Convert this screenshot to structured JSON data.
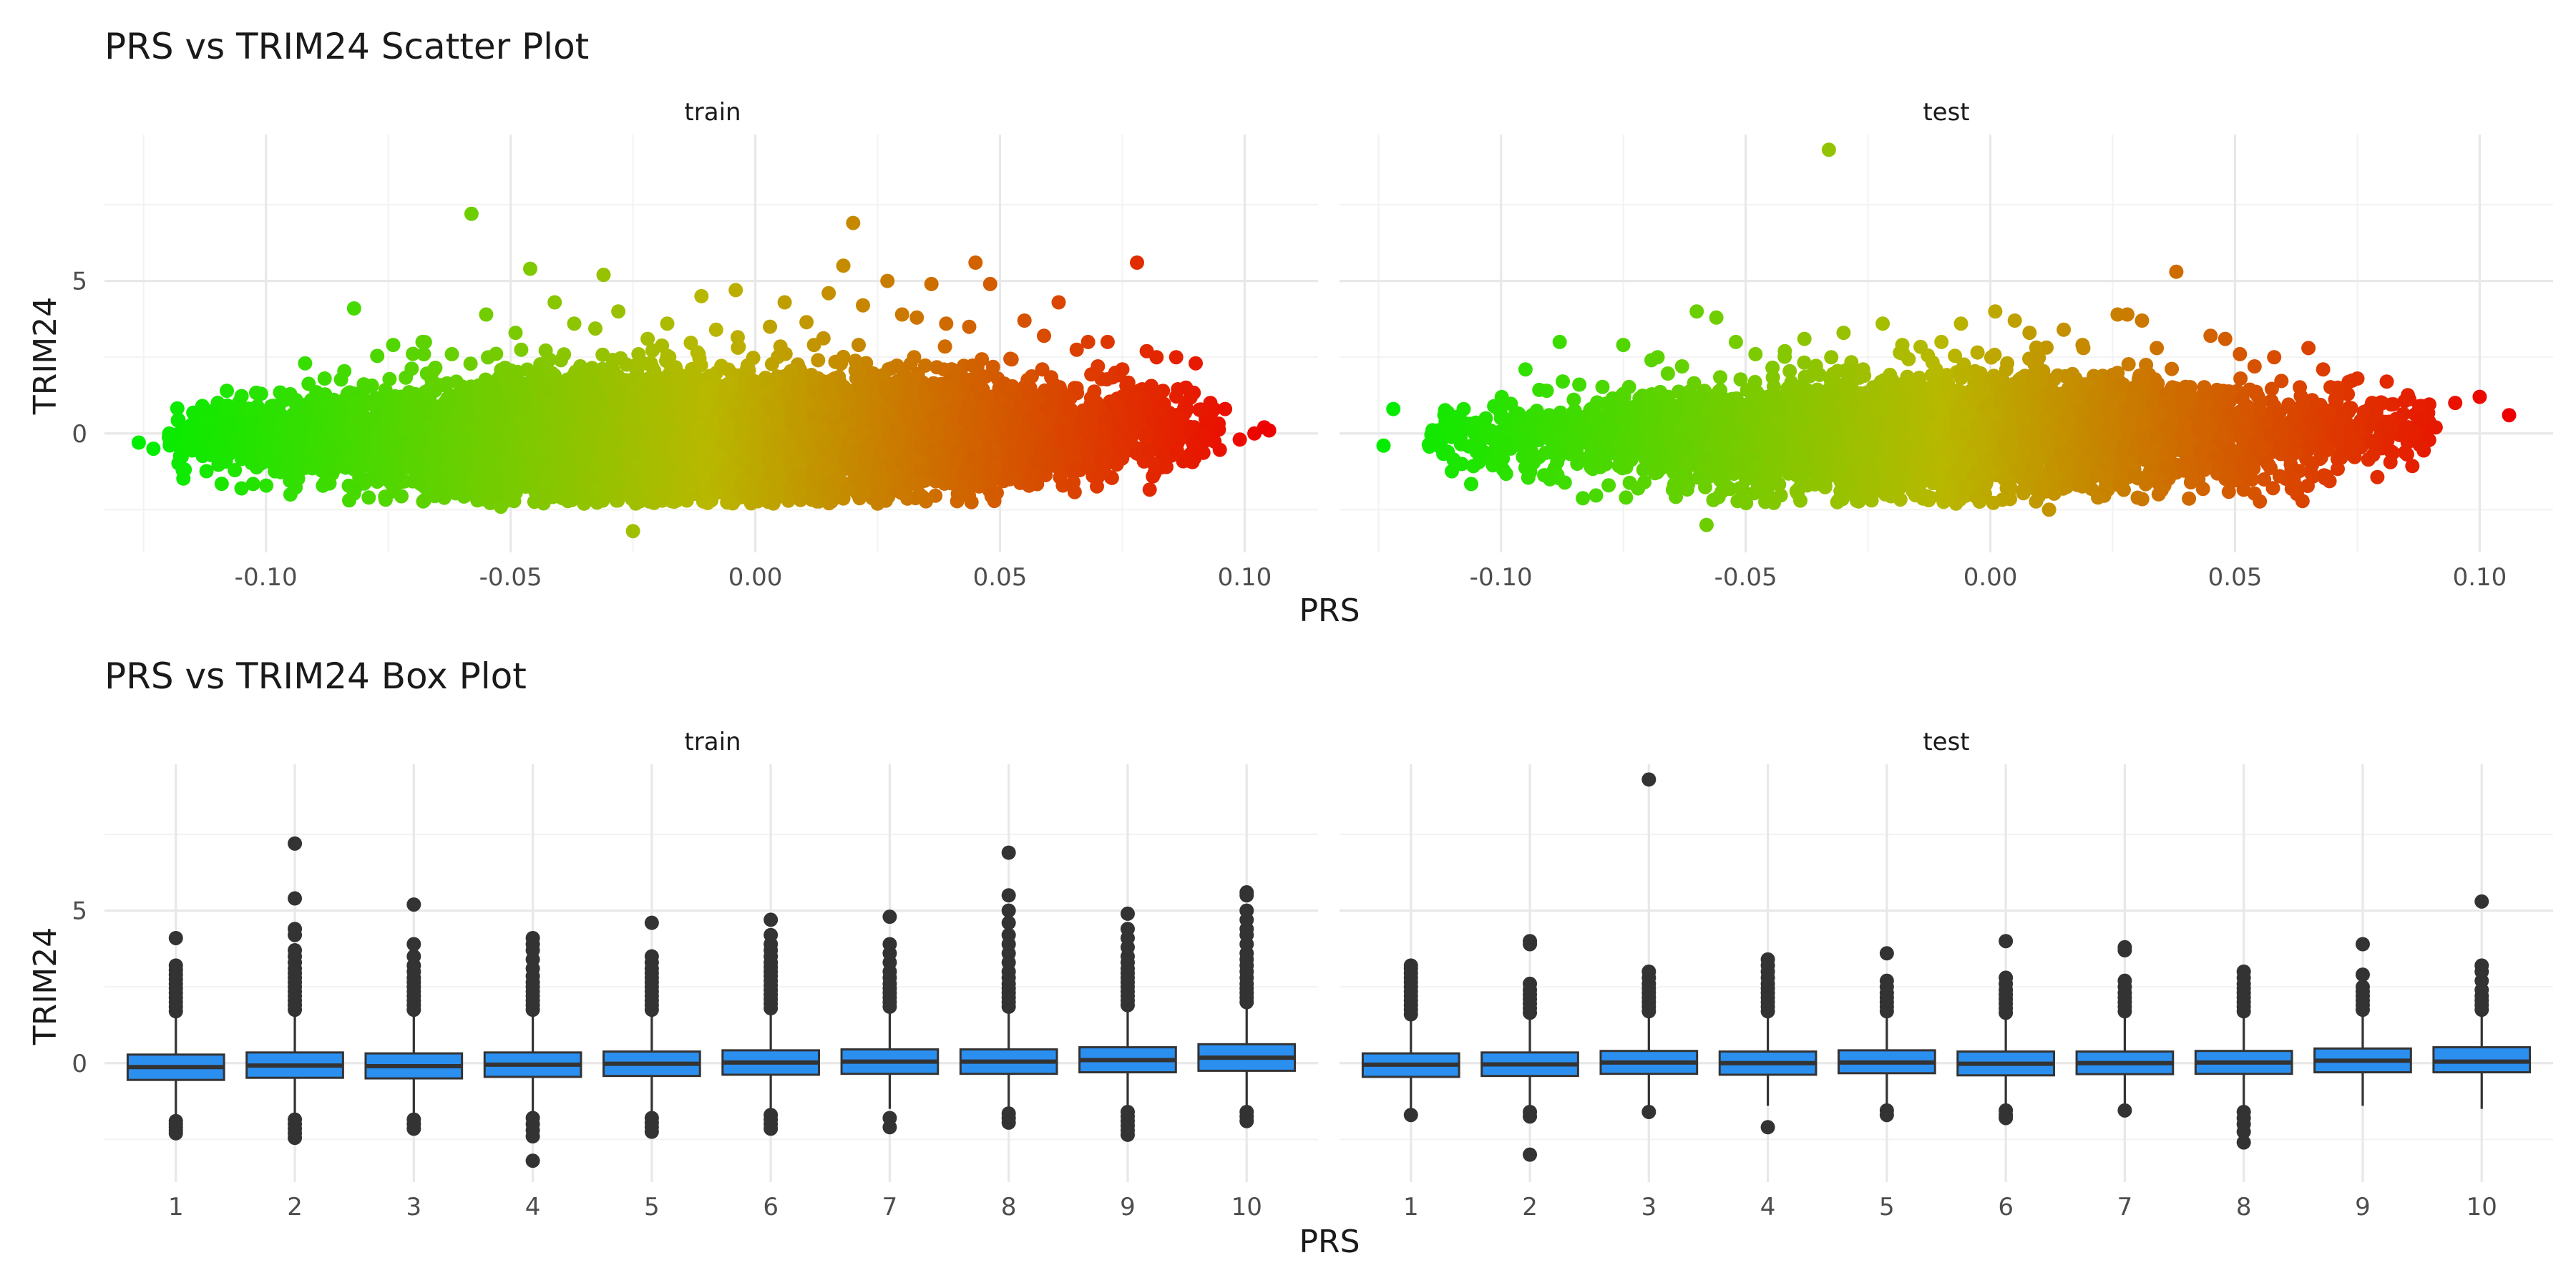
{
  "chart_data": [
    {
      "type": "scatter",
      "title": "PRS vs TRIM24 Scatter Plot",
      "xlabel": "PRS",
      "ylabel": "TRIM24",
      "facets": [
        "train",
        "test"
      ],
      "xlim": [
        -0.133,
        0.115
      ],
      "ylim": [
        -3.9,
        9.8
      ],
      "x_ticks": [
        -0.1,
        -0.05,
        0.0,
        0.05,
        0.1
      ],
      "x_tick_labels": [
        "-0.10",
        "-0.05",
        "0.00",
        "0.05",
        "0.10"
      ],
      "y_ticks": [
        0,
        5
      ],
      "y_tick_labels": [
        "0",
        "5"
      ],
      "grid": true,
      "color_gradient": {
        "low": "#00ee00",
        "mid": "#b8b800",
        "high": "#ee0000",
        "mapped_to": "PRS"
      },
      "bulk": {
        "train": {
          "x_range": [
            -0.12,
            0.095
          ],
          "y_mean": 0.0,
          "y_sd": 0.85,
          "n_approx": 9000
        },
        "test": {
          "x_range": [
            -0.115,
            0.09
          ],
          "y_mean": 0.0,
          "y_sd": 0.8,
          "n_approx": 5000
        }
      },
      "series": [
        {
          "name": "train",
          "x": [
            -0.126,
            -0.123,
            -0.117,
            -0.113,
            -0.108,
            -0.105,
            -0.101,
            -0.095,
            -0.092,
            -0.088,
            -0.082,
            -0.079,
            -0.074,
            -0.068,
            -0.066,
            -0.062,
            -0.058,
            -0.055,
            -0.052,
            -0.049,
            -0.046,
            -0.043,
            -0.041,
            -0.037,
            -0.035,
            -0.031,
            -0.028,
            -0.025,
            -0.022,
            -0.018,
            -0.014,
            -0.011,
            -0.008,
            -0.004,
            -0.001,
            0.003,
            0.006,
            0.009,
            0.012,
            0.015,
            0.018,
            0.02,
            0.022,
            0.025,
            0.027,
            0.03,
            0.033,
            0.036,
            0.039,
            0.042,
            0.045,
            0.048,
            0.052,
            0.055,
            0.059,
            0.062,
            0.065,
            0.068,
            0.07,
            0.072,
            0.075,
            0.078,
            0.08,
            0.082,
            0.084,
            0.086,
            0.088,
            0.09,
            0.093,
            0.096,
            0.099,
            0.102,
            0.104,
            0.105
          ],
          "y": [
            -0.3,
            -0.5,
            -1.2,
            0.9,
            1.4,
            -1.8,
            1.3,
            -2.0,
            2.3,
            1.8,
            4.1,
            -2.1,
            2.9,
            3.0,
            -1.6,
            2.6,
            7.2,
            3.9,
            -2.4,
            3.3,
            5.4,
            -2.0,
            4.3,
            3.6,
            -2.3,
            5.2,
            4.0,
            -3.2,
            3.1,
            3.6,
            -2.2,
            4.5,
            3.4,
            4.7,
            -2.0,
            3.5,
            4.3,
            -1.9,
            2.9,
            4.6,
            5.5,
            6.9,
            4.2,
            -2.3,
            5.0,
            3.9,
            3.8,
            4.9,
            3.6,
            -1.8,
            5.6,
            4.9,
            -1.5,
            3.7,
            3.2,
            4.3,
            -1.6,
            3.0,
            2.2,
            3.0,
            2.1,
            5.6,
            2.7,
            2.5,
            -1.1,
            2.5,
            1.5,
            2.3,
            1.0,
            0.8,
            -0.2,
            0.0,
            0.2,
            0.1
          ]
        },
        {
          "name": "test",
          "x": [
            -0.124,
            -0.122,
            -0.113,
            -0.111,
            -0.108,
            -0.105,
            -0.1,
            -0.095,
            -0.09,
            -0.088,
            -0.084,
            -0.078,
            -0.075,
            -0.072,
            -0.068,
            -0.063,
            -0.06,
            -0.058,
            -0.056,
            -0.052,
            -0.048,
            -0.045,
            -0.042,
            -0.038,
            -0.033,
            -0.03,
            -0.026,
            -0.022,
            -0.018,
            -0.014,
            -0.01,
            -0.006,
            -0.002,
            0.001,
            0.005,
            0.008,
            0.012,
            0.015,
            0.019,
            0.022,
            0.026,
            0.028,
            0.031,
            0.034,
            0.038,
            0.041,
            0.045,
            0.048,
            0.051,
            0.054,
            0.058,
            0.062,
            0.065,
            0.068,
            0.071,
            0.075,
            0.078,
            0.081,
            0.085,
            0.088,
            0.091,
            0.095,
            0.1,
            0.106
          ],
          "y": [
            -0.4,
            0.8,
            -0.3,
            0.3,
            -1.0,
            -0.6,
            0.5,
            2.1,
            -1.5,
            3.0,
            1.6,
            -1.7,
            2.9,
            -1.8,
            2.5,
            2.2,
            4.0,
            -3.0,
            3.8,
            3.0,
            2.6,
            -1.6,
            2.7,
            3.1,
            9.3,
            3.3,
            2.1,
            3.6,
            2.9,
            -2.0,
            3.0,
            3.6,
            -1.4,
            4.0,
            3.7,
            3.3,
            -2.5,
            3.4,
            2.8,
            -2.1,
            3.9,
            3.9,
            3.7,
            2.8,
            5.3,
            -1.6,
            3.2,
            3.1,
            2.6,
            2.2,
            2.5,
            -1.5,
            2.8,
            2.1,
            1.5,
            1.8,
            1.0,
            1.7,
            0.2,
            0.9,
            0.2,
            1.0,
            1.2,
            0.6
          ]
        }
      ]
    },
    {
      "type": "box",
      "title": "PRS vs TRIM24 Box Plot",
      "xlabel": "PRS",
      "ylabel": "TRIM24",
      "facets": [
        "train",
        "test"
      ],
      "categories": [
        "1",
        "2",
        "3",
        "4",
        "5",
        "6",
        "7",
        "8",
        "9",
        "10"
      ],
      "ylim": [
        -3.9,
        9.8
      ],
      "y_ticks": [
        0,
        5
      ],
      "y_tick_labels": [
        "0",
        "5"
      ],
      "grid": true,
      "fill_color": "#2b8ff0",
      "series": [
        {
          "name": "train",
          "boxes": [
            {
              "q1": -0.55,
              "median": -0.13,
              "q3": 0.28,
              "whisker_low": -1.8,
              "whisker_high": 1.55,
              "outliers": [
                1.7,
                1.85,
                2.0,
                2.15,
                2.3,
                2.45,
                2.6,
                2.75,
                2.9,
                3.05,
                3.2,
                4.1,
                -1.9,
                -2.0,
                -2.1,
                -2.2,
                -2.3
              ]
            },
            {
              "q1": -0.48,
              "median": -0.08,
              "q3": 0.35,
              "whisker_low": -1.7,
              "whisker_high": 1.6,
              "outliers": [
                1.75,
                1.9,
                2.05,
                2.2,
                2.35,
                2.5,
                2.65,
                2.8,
                2.95,
                3.1,
                3.3,
                3.5,
                3.7,
                4.2,
                4.4,
                5.4,
                7.2,
                -1.85,
                -2.0,
                -2.15,
                -2.3,
                -2.45
              ]
            },
            {
              "q1": -0.5,
              "median": -0.1,
              "q3": 0.32,
              "whisker_low": -1.7,
              "whisker_high": 1.6,
              "outliers": [
                1.75,
                1.9,
                2.05,
                2.2,
                2.35,
                2.5,
                2.65,
                2.8,
                3.0,
                3.2,
                3.5,
                3.9,
                5.2,
                -1.85,
                -2.0,
                -2.15
              ]
            },
            {
              "q1": -0.45,
              "median": -0.05,
              "q3": 0.35,
              "whisker_low": -1.65,
              "whisker_high": 1.6,
              "outliers": [
                1.75,
                1.9,
                2.05,
                2.2,
                2.35,
                2.5,
                2.65,
                2.85,
                3.1,
                3.4,
                3.7,
                3.9,
                4.1,
                -1.8,
                -2.0,
                -2.2,
                -2.4,
                -3.2
              ]
            },
            {
              "q1": -0.42,
              "median": -0.02,
              "q3": 0.38,
              "whisker_low": -1.6,
              "whisker_high": 1.6,
              "outliers": [
                1.75,
                1.9,
                2.05,
                2.2,
                2.35,
                2.5,
                2.65,
                2.8,
                2.95,
                3.1,
                3.3,
                3.5,
                4.6,
                -1.8,
                -1.95,
                -2.1,
                -2.25
              ]
            },
            {
              "q1": -0.38,
              "median": 0.02,
              "q3": 0.42,
              "whisker_low": -1.55,
              "whisker_high": 1.65,
              "outliers": [
                1.8,
                1.95,
                2.1,
                2.25,
                2.4,
                2.55,
                2.7,
                2.85,
                3.0,
                3.15,
                3.3,
                3.5,
                3.7,
                3.9,
                4.2,
                4.7,
                -1.7,
                -1.85,
                -2.0,
                -2.15
              ]
            },
            {
              "q1": -0.35,
              "median": 0.05,
              "q3": 0.45,
              "whisker_low": -1.5,
              "whisker_high": 1.7,
              "outliers": [
                1.85,
                2.0,
                2.15,
                2.3,
                2.45,
                2.6,
                2.8,
                3.0,
                3.3,
                3.6,
                3.9,
                4.8,
                -1.8,
                -2.1
              ]
            },
            {
              "q1": -0.35,
              "median": 0.05,
              "q3": 0.45,
              "whisker_low": -1.5,
              "whisker_high": 1.7,
              "outliers": [
                1.85,
                2.0,
                2.15,
                2.3,
                2.45,
                2.6,
                2.8,
                3.0,
                3.3,
                3.6,
                3.9,
                4.2,
                4.6,
                5.0,
                5.5,
                6.9,
                -1.65,
                -1.8,
                -1.95
              ]
            },
            {
              "q1": -0.3,
              "median": 0.1,
              "q3": 0.52,
              "whisker_low": -1.45,
              "whisker_high": 1.75,
              "outliers": [
                1.9,
                2.05,
                2.2,
                2.35,
                2.5,
                2.65,
                2.8,
                2.95,
                3.1,
                3.3,
                3.5,
                3.8,
                4.1,
                4.4,
                4.9,
                -1.6,
                -1.75,
                -1.9,
                -2.05,
                -2.2,
                -2.35
              ]
            },
            {
              "q1": -0.25,
              "median": 0.18,
              "q3": 0.62,
              "whisker_low": -1.45,
              "whisker_high": 1.85,
              "outliers": [
                2.0,
                2.15,
                2.3,
                2.45,
                2.6,
                2.8,
                3.0,
                3.2,
                3.4,
                3.6,
                3.9,
                4.2,
                4.4,
                4.7,
                5.0,
                5.5,
                5.6,
                -1.6,
                -1.75,
                -1.9
              ]
            }
          ]
        },
        {
          "name": "test",
          "boxes": [
            {
              "q1": -0.45,
              "median": -0.05,
              "q3": 0.32,
              "whisker_low": -1.5,
              "whisker_high": 1.45,
              "outliers": [
                1.6,
                1.75,
                1.9,
                2.05,
                2.2,
                2.35,
                2.5,
                2.65,
                2.8,
                2.95,
                3.1,
                3.2,
                -1.7
              ]
            },
            {
              "q1": -0.42,
              "median": -0.04,
              "q3": 0.35,
              "whisker_low": -1.45,
              "whisker_high": 1.5,
              "outliers": [
                1.65,
                1.8,
                1.95,
                2.1,
                2.25,
                2.4,
                2.6,
                3.9,
                4.0,
                -1.6,
                -1.75,
                -3.0
              ]
            },
            {
              "q1": -0.35,
              "median": 0.02,
              "q3": 0.4,
              "whisker_low": -1.45,
              "whisker_high": 1.55,
              "outliers": [
                1.7,
                1.85,
                2.0,
                2.15,
                2.3,
                2.45,
                2.6,
                2.8,
                3.0,
                9.3,
                -1.6
              ]
            },
            {
              "q1": -0.38,
              "median": 0.0,
              "q3": 0.38,
              "whisker_low": -1.4,
              "whisker_high": 1.55,
              "outliers": [
                1.7,
                1.85,
                2.0,
                2.15,
                2.3,
                2.45,
                2.6,
                2.8,
                3.0,
                3.2,
                3.4,
                -2.1
              ]
            },
            {
              "q1": -0.33,
              "median": 0.02,
              "q3": 0.42,
              "whisker_low": -1.45,
              "whisker_high": 1.55,
              "outliers": [
                1.7,
                1.85,
                2.0,
                2.15,
                2.3,
                2.5,
                2.7,
                3.6,
                -1.55,
                -1.7
              ]
            },
            {
              "q1": -0.4,
              "median": -0.02,
              "q3": 0.38,
              "whisker_low": -1.45,
              "whisker_high": 1.5,
              "outliers": [
                1.65,
                1.8,
                1.95,
                2.1,
                2.25,
                2.4,
                2.6,
                2.8,
                4.0,
                -1.55,
                -1.7,
                -1.8
              ]
            },
            {
              "q1": -0.36,
              "median": 0.0,
              "q3": 0.38,
              "whisker_low": -1.4,
              "whisker_high": 1.55,
              "outliers": [
                1.7,
                1.85,
                2.0,
                2.15,
                2.3,
                2.5,
                2.7,
                3.7,
                3.8,
                -1.55
              ]
            },
            {
              "q1": -0.35,
              "median": 0.02,
              "q3": 0.4,
              "whisker_low": -1.45,
              "whisker_high": 1.55,
              "outliers": [
                1.7,
                1.85,
                2.0,
                2.15,
                2.3,
                2.45,
                2.6,
                2.8,
                3.0,
                -1.6,
                -1.8,
                -2.0,
                -2.25,
                -2.6
              ]
            },
            {
              "q1": -0.3,
              "median": 0.08,
              "q3": 0.48,
              "whisker_low": -1.4,
              "whisker_high": 1.6,
              "outliers": [
                1.75,
                1.9,
                2.05,
                2.2,
                2.35,
                2.5,
                2.9,
                3.9
              ]
            },
            {
              "q1": -0.3,
              "median": 0.05,
              "q3": 0.52,
              "whisker_low": -1.5,
              "whisker_high": 1.6,
              "outliers": [
                1.75,
                1.9,
                2.05,
                2.2,
                2.4,
                2.7,
                3.0,
                3.2,
                5.3
              ]
            }
          ]
        }
      ]
    }
  ]
}
